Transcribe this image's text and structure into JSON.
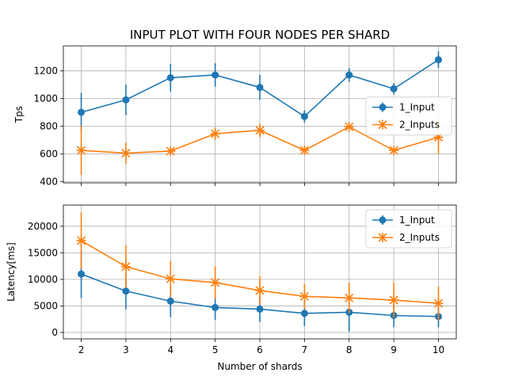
{
  "chart_data": [
    {
      "type": "line",
      "title": "INPUT PLOT WITH FOUR NODES PER SHARD",
      "xlabel": "",
      "ylabel": "Tps",
      "x": [
        2,
        3,
        4,
        5,
        6,
        7,
        8,
        9,
        10
      ],
      "xlim": [
        1.6,
        10.4
      ],
      "ylim": [
        390,
        1380
      ],
      "yticks": [
        400,
        600,
        800,
        1000,
        1200
      ],
      "grid": true,
      "legend": "center-right",
      "series": [
        {
          "name": "1_Input",
          "color": "#1f77b4",
          "marker": "circle",
          "values": [
            900,
            990,
            1150,
            1170,
            1080,
            870,
            1170,
            1070,
            1280
          ],
          "err": [
            140,
            110,
            100,
            85,
            90,
            45,
            50,
            40,
            60
          ]
        },
        {
          "name": "2_Inputs",
          "color": "#ff7f0e",
          "marker": "x",
          "values": [
            625,
            605,
            620,
            745,
            770,
            625,
            795,
            625,
            720
          ],
          "err": [
            180,
            75,
            25,
            45,
            50,
            30,
            35,
            20,
            120
          ]
        }
      ]
    },
    {
      "type": "line",
      "title": "",
      "xlabel": "Number of shards",
      "ylabel": "Latency[ms]",
      "x": [
        2,
        3,
        4,
        5,
        6,
        7,
        8,
        9,
        10
      ],
      "xlim": [
        1.6,
        10.4
      ],
      "ylim": [
        -1200,
        24000
      ],
      "yticks": [
        0,
        5000,
        10000,
        15000,
        20000
      ],
      "xticks": [
        2,
        3,
        4,
        5,
        6,
        7,
        8,
        9,
        10
      ],
      "grid": true,
      "legend": "top-right",
      "series": [
        {
          "name": "1_Input",
          "color": "#1f77b4",
          "marker": "circle",
          "values": [
            11000,
            7800,
            5900,
            4700,
            4400,
            3600,
            3800,
            3200,
            3000
          ],
          "err": [
            4500,
            3400,
            3000,
            2300,
            2400,
            2400,
            3600,
            2200,
            2000
          ]
        },
        {
          "name": "2_Inputs",
          "color": "#ff7f0e",
          "marker": "x",
          "values": [
            17300,
            12400,
            10100,
            9400,
            7900,
            6800,
            6500,
            6100,
            5500
          ],
          "err": [
            5300,
            4000,
            3400,
            3100,
            2700,
            2400,
            2800,
            3300,
            3200
          ]
        }
      ]
    }
  ]
}
